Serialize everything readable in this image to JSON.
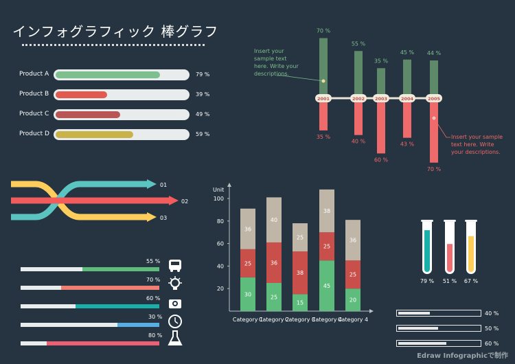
{
  "title": "インフォグラフィック 棒グラフ",
  "footer": "Edraw Infographicで制作",
  "colors": {
    "background": "#253440",
    "green": "#7fbf8e",
    "red": "#e05a4f",
    "darkred": "#b85555",
    "gold": "#c9b24a",
    "teal": "#1ab0aa",
    "yellow": "#ffcd5c",
    "pink": "#ef6f73",
    "blue": "#58aee0",
    "stack_top": "#c0b6a8",
    "stack_mid": "#c9504a",
    "stack_bot": "#5ebd7d",
    "up_bar": "#5f8a6a",
    "down_bar": "#ef6a6a"
  },
  "products": [
    {
      "label": "Product A",
      "value": 79,
      "pct": "79 %",
      "color": "#7fbf8e"
    },
    {
      "label": "Product B",
      "value": 39,
      "pct": "39 %",
      "color": "#e05a4f"
    },
    {
      "label": "Product C",
      "value": 49,
      "pct": "49 %",
      "color": "#b85555"
    },
    {
      "label": "Product D",
      "value": 59,
      "pct": "59 %",
      "color": "#c9b24a"
    }
  ],
  "timeline": {
    "annotation_top": [
      "Insert your",
      "sample text",
      "here. Write your",
      "descriptions."
    ],
    "annotation_bottom": [
      "Insert your sample",
      "text here. Write",
      "your descriptions."
    ],
    "years": [
      "2001",
      "2002",
      "2003",
      "2004",
      "2005"
    ],
    "up": [
      70,
      55,
      35,
      45,
      44
    ],
    "up_labels": [
      "70 %",
      "55 %",
      "35 %",
      "45 %",
      "44 %"
    ],
    "down": [
      35,
      40,
      60,
      43,
      70
    ],
    "down_labels": [
      "35 %",
      "40 %",
      "60 %",
      "43 %",
      "70 %"
    ]
  },
  "arrows": {
    "labels": [
      "01",
      "02",
      "03"
    ],
    "icon": "crossing-arrows-icon"
  },
  "icon_bars": [
    {
      "label": "55 %",
      "value": 55,
      "color": "#5ebd7d",
      "icon": "bus-icon"
    },
    {
      "label": "70 %",
      "value": 70,
      "color": "#ef7f73",
      "icon": "lightbulb-icon"
    },
    {
      "label": "60 %",
      "value": 60,
      "color": "#1ab0aa",
      "icon": "camera-icon"
    },
    {
      "label": "30 %",
      "value": 30,
      "color": "#58aee0",
      "icon": "clock-icon"
    },
    {
      "label": "80 %",
      "value": 80,
      "color": "#ef5f73",
      "icon": "flask-icon"
    }
  ],
  "chart_data": [
    {
      "type": "bar",
      "categories": [
        "Product A",
        "Product B",
        "Product C",
        "Product D"
      ],
      "values": [
        79,
        39,
        49,
        59
      ],
      "xlim": [
        0,
        100
      ]
    },
    {
      "type": "bar",
      "categories": [
        "2001",
        "2002",
        "2003",
        "2004",
        "2005"
      ],
      "series": [
        {
          "values": [
            70,
            55,
            35,
            45,
            44
          ]
        },
        {
          "values": [
            35,
            40,
            60,
            43,
            70
          ]
        }
      ]
    },
    {
      "type": "bar",
      "stacked": true,
      "ylabel": "Unit",
      "ylim": [
        0,
        110
      ],
      "yticks": [
        20,
        40,
        60,
        80,
        100
      ],
      "categories": [
        "Category 1",
        "Category 2",
        "Category 3",
        "Category 4",
        "Category 4"
      ],
      "series": [
        {
          "values": [
            30,
            25,
            15,
            45,
            20
          ],
          "color": "#5ebd7d"
        },
        {
          "values": [
            25,
            36,
            38,
            25,
            25
          ],
          "color": "#c9504a"
        },
        {
          "values": [
            36,
            40,
            25,
            38,
            36
          ],
          "color": "#c0b6a8"
        }
      ],
      "grid": false
    },
    {
      "type": "bar",
      "categories": [
        "tube-1",
        "tube-2",
        "tube-3"
      ],
      "values": [
        79,
        51,
        67
      ],
      "labels": [
        "79 %",
        "51 %",
        "67 %"
      ],
      "colors": [
        "#1ab0aa",
        "#ef6f73",
        "#ffcd5c"
      ]
    },
    {
      "type": "bar",
      "values": [
        40,
        50,
        60
      ],
      "labels": [
        "40 %",
        "50 %",
        "60 %"
      ]
    }
  ]
}
